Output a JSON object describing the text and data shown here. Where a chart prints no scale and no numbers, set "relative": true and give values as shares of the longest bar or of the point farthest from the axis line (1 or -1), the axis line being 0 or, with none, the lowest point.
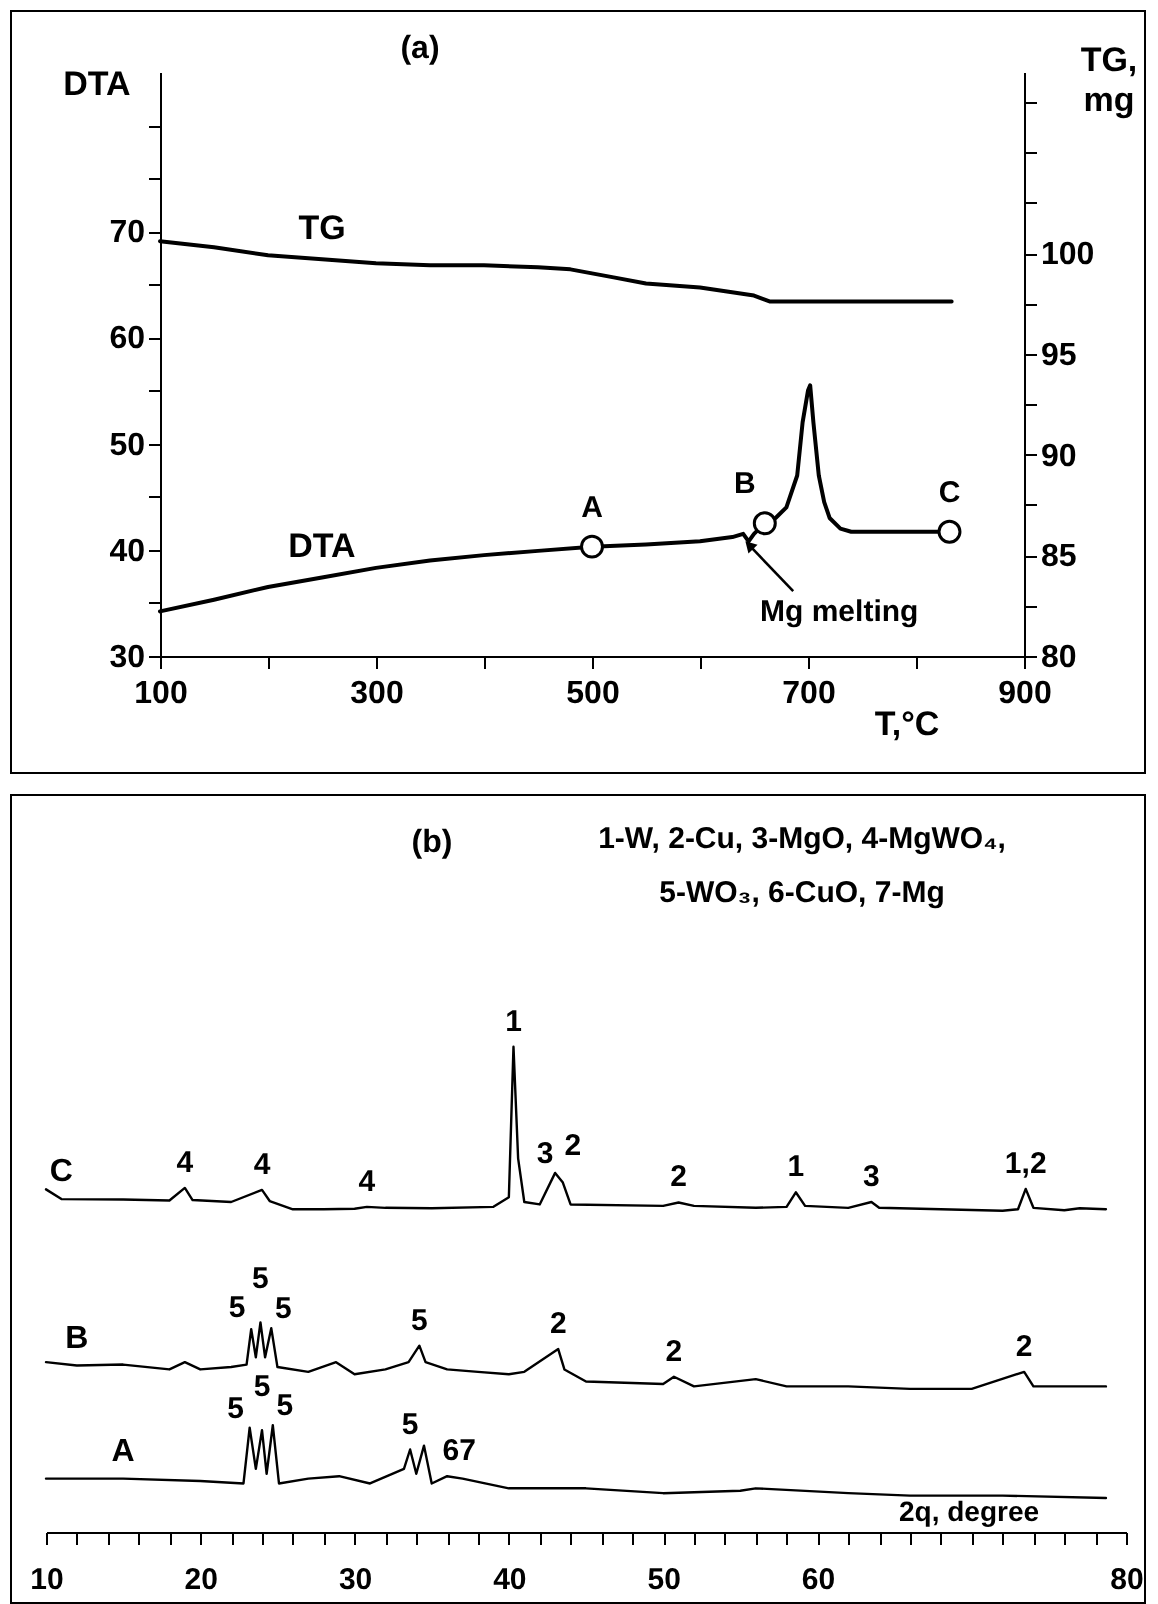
{
  "chart_data": [
    {
      "type": "line",
      "title": "(a)",
      "xlabel": "T,°C",
      "ylabel": "DTA",
      "y2label": "TG, mg",
      "xlim": [
        100,
        900
      ],
      "xticks": [
        100,
        {
          "value": 200,
          "label": null
        },
        300,
        {
          "value": 400,
          "label": null
        },
        500,
        {
          "value": 600,
          "label": null
        },
        700,
        {
          "value": 800,
          "label": null
        },
        900
      ],
      "ylim": [
        30,
        85
      ],
      "yticks": [
        30,
        {
          "value": 35,
          "label": null
        },
        40,
        {
          "value": 45,
          "label": null
        },
        50,
        {
          "value": 55,
          "label": null
        },
        60,
        {
          "value": 65,
          "label": null
        },
        70,
        {
          "value": 75,
          "label": null
        },
        {
          "value": 80,
          "label": null
        }
      ],
      "y2lim": [
        80,
        109
      ],
      "y2ticks": [
        80,
        {
          "value": 82.5,
          "label": null
        },
        85,
        {
          "value": 87.5,
          "label": null
        },
        90,
        {
          "value": 92.5,
          "label": null
        },
        95,
        {
          "value": 97.5,
          "label": null
        },
        100,
        {
          "value": 102.5,
          "label": null
        },
        {
          "value": 105,
          "label": null
        },
        {
          "value": 107.5,
          "label": null
        }
      ],
      "series": [
        {
          "name": "DTA",
          "color": "#000000",
          "x": [
            100,
            150,
            200,
            250,
            300,
            350,
            400,
            450,
            500,
            550,
            600,
            630,
            640,
            645,
            650,
            660,
            670,
            680,
            690,
            695,
            700,
            702,
            705,
            710,
            715,
            720,
            730,
            740,
            780,
            833
          ],
          "values": [
            34.2,
            35.3,
            36.5,
            37.4,
            38.3,
            39,
            39.5,
            39.9,
            40.3,
            40.5,
            40.8,
            41.2,
            41.5,
            40.8,
            41.5,
            42.5,
            43,
            44,
            47,
            52,
            55,
            55.5,
            52,
            47,
            44.5,
            43,
            42,
            41.7,
            41.7,
            41.7
          ]
        },
        {
          "name": "TG",
          "color": "#000000",
          "axis": "y2",
          "x": [
            100,
            150,
            200,
            250,
            300,
            350,
            400,
            450,
            480,
            520,
            550,
            600,
            650,
            665,
            700,
            750,
            800,
            833
          ],
          "values": [
            100.6,
            100.3,
            99.9,
            99.7,
            99.5,
            99.4,
            99.4,
            99.3,
            99.2,
            98.8,
            98.5,
            98.3,
            97.9,
            97.6,
            97.6,
            97.6,
            97.6,
            97.6
          ]
        },
        {
          "type": "scatter",
          "color": "#000000",
          "x": [
            500,
            660,
            831
          ],
          "values": [
            40.3,
            42.5,
            41.7
          ]
        }
      ],
      "annotations": [
        {
          "text": "A",
          "x": 500,
          "y": 40.3
        },
        {
          "text": "B",
          "x": 660,
          "y": 42.5
        },
        {
          "text": "C",
          "x": 831,
          "y": 41.7
        },
        {
          "text": "Mg melting",
          "x": 640,
          "y": 41
        }
      ]
    },
    {
      "type": "line",
      "title": "(b)",
      "xlabel": "2q, degree",
      "relative": true,
      "xlim": [
        10,
        80
      ],
      "xticks": [
        10,
        {
          "value": 12,
          "label": null
        },
        {
          "value": 14,
          "label": null
        },
        {
          "value": 16,
          "label": null
        },
        {
          "value": 18,
          "label": null
        },
        20,
        {
          "value": 22,
          "label": null
        },
        {
          "value": 24,
          "label": null
        },
        {
          "value": 26,
          "label": null
        },
        {
          "value": 28,
          "label": null
        },
        30,
        {
          "value": 32,
          "label": null
        },
        {
          "value": 34,
          "label": null
        },
        {
          "value": 36,
          "label": null
        },
        {
          "value": 38,
          "label": null
        },
        40,
        {
          "value": 42,
          "label": null
        },
        {
          "value": 44,
          "label": null
        },
        {
          "value": 46,
          "label": null
        },
        {
          "value": 48,
          "label": null
        },
        50,
        {
          "value": 52,
          "label": null
        },
        {
          "value": 54,
          "label": null
        },
        {
          "value": 56,
          "label": null
        },
        {
          "value": 58,
          "label": null
        },
        60,
        {
          "value": 62,
          "label": null
        },
        {
          "value": 64,
          "label": null
        },
        {
          "value": 66,
          "label": null
        },
        {
          "value": 68,
          "label": null
        },
        {
          "value": 70,
          "label": null
        },
        {
          "value": 72,
          "label": null
        },
        {
          "value": 74,
          "label": null
        },
        {
          "value": 76,
          "label": null
        },
        {
          "value": 78,
          "label": null
        },
        80
      ],
      "series": [
        {
          "name": "A",
          "color": "#000000",
          "x": [
            10,
            15,
            20,
            22.8,
            23.2,
            23.6,
            24.0,
            24.3,
            24.7,
            25.1,
            27,
            29,
            31,
            33.2,
            33.6,
            34,
            34.5,
            35,
            36,
            37,
            40,
            45,
            50,
            55,
            56,
            62,
            66,
            72,
            78.7
          ],
          "values": [
            0.11,
            0.11,
            0.105,
            0.1,
            0.215,
            0.13,
            0.21,
            0.12,
            0.22,
            0.1,
            0.11,
            0.115,
            0.1,
            0.13,
            0.17,
            0.12,
            0.178,
            0.1,
            0.115,
            0.11,
            0.09,
            0.09,
            0.08,
            0.085,
            0.09,
            0.08,
            0.075,
            0.075,
            0.07
          ]
        },
        {
          "name": "B",
          "color": "#000000",
          "x": [
            10,
            12,
            15,
            18,
            19,
            20,
            22,
            23,
            23.3,
            23.6,
            23.9,
            24.2,
            24.6,
            25,
            27,
            28.8,
            30,
            32,
            33.5,
            34.2,
            34.6,
            36,
            38,
            40,
            41,
            43.2,
            43.6,
            45,
            50,
            50.7,
            52,
            56,
            58,
            62,
            66,
            70,
            73.4,
            74,
            78.7
          ],
          "values": [
            0.35,
            0.343,
            0.345,
            0.335,
            0.35,
            0.335,
            0.34,
            0.345,
            0.418,
            0.36,
            0.432,
            0.36,
            0.42,
            0.34,
            0.33,
            0.35,
            0.325,
            0.335,
            0.35,
            0.384,
            0.35,
            0.335,
            0.33,
            0.325,
            0.33,
            0.377,
            0.335,
            0.31,
            0.305,
            0.32,
            0.3,
            0.315,
            0.3,
            0.3,
            0.295,
            0.295,
            0.33,
            0.3,
            0.3
          ]
        },
        {
          "name": "C",
          "color": "#000000",
          "x": [
            10,
            11,
            15,
            18,
            19,
            19.5,
            22,
            24,
            24.5,
            26,
            28,
            30,
            30.8,
            32,
            35,
            39,
            40,
            40.3,
            40.6,
            41,
            42,
            43,
            43.5,
            44,
            50,
            51,
            52,
            56,
            58,
            58.6,
            59.2,
            62,
            63.5,
            64,
            68,
            72,
            73,
            73.5,
            74,
            76,
            77,
            78.7
          ],
          "values": [
            0.706,
            0.686,
            0.685,
            0.683,
            0.709,
            0.684,
            0.68,
            0.705,
            0.682,
            0.665,
            0.665,
            0.666,
            0.67,
            0.668,
            0.667,
            0.67,
            0.69,
            1,
            0.77,
            0.68,
            0.675,
            0.74,
            0.72,
            0.675,
            0.672,
            0.679,
            0.672,
            0.668,
            0.67,
            0.7,
            0.672,
            0.668,
            0.68,
            0.668,
            0.665,
            0.662,
            0.665,
            0.707,
            0.668,
            0.663,
            0.667,
            0.665
          ]
        }
      ],
      "annotations": [
        "1-W, 2-Cu, 3-MgO, 4-MgWO₄, 5-WO₃, 6-CuO, 7-Mg",
        {
          "text": "4",
          "x": 19,
          "y": 0.709
        },
        {
          "text": "4",
          "x": 24,
          "y": 0.705
        },
        {
          "text": "4",
          "x": 30.8,
          "y": 0.67
        },
        {
          "text": "1",
          "x": 40.3,
          "y": 1
        },
        {
          "text": "3",
          "x": 43,
          "y": 0.74
        },
        {
          "text": "2",
          "x": 43.5,
          "y": 0.72
        },
        {
          "text": "2",
          "x": 51,
          "y": 0.679
        },
        {
          "text": "1",
          "x": 58.6,
          "y": 0.7
        },
        {
          "text": "3",
          "x": 63.5,
          "y": 0.68
        },
        {
          "text": "1,2",
          "x": 73.5,
          "y": 0.707
        },
        {
          "text": "5",
          "x": 23.3,
          "y": 0.418
        },
        {
          "text": "5",
          "x": 23.9,
          "y": 0.432
        },
        {
          "text": "5",
          "x": 24.6,
          "y": 0.42
        },
        {
          "text": "5",
          "x": 34.2,
          "y": 0.384
        },
        {
          "text": "2",
          "x": 43.2,
          "y": 0.377
        },
        {
          "text": "2",
          "x": 50.7,
          "y": 0.32
        },
        {
          "text": "2",
          "x": 73.4,
          "y": 0.33
        },
        {
          "text": "5",
          "x": 23.2,
          "y": 0.215
        },
        {
          "text": "5",
          "x": 24,
          "y": 0.21
        },
        {
          "text": "5",
          "x": 24.7,
          "y": 0.22
        },
        {
          "text": "5",
          "x": 33.6,
          "y": 0.17
        },
        {
          "text": "67",
          "x": 36,
          "y": 0.115
        }
      ]
    }
  ]
}
